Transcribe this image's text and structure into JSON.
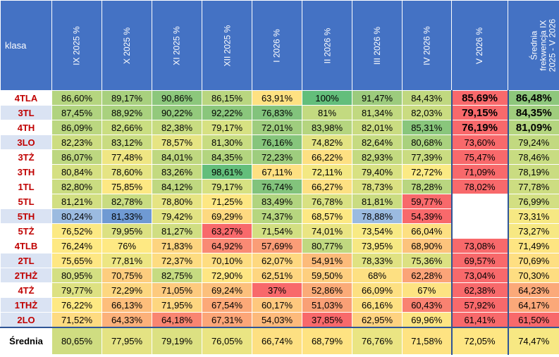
{
  "header": {
    "klasa": "klasa",
    "months": [
      "IX 2025 %",
      "X 2025 %",
      "XI 2025 %",
      "XII 2025 %",
      "I 2026 %",
      "II 2026 %",
      "III 2026 %",
      "IV 2026 %",
      "V 2026 %"
    ],
    "avg_line1": "Średnia frekwencja IX",
    "avg_line2": "2025 - V 2026"
  },
  "rows": [
    {
      "klasa": "4TLA",
      "values": [
        "86,60%",
        "89,17%",
        "90,86%",
        "86,15%",
        "63,91%",
        "100%",
        "91,47%",
        "84,43%",
        "85,69%"
      ],
      "avg": "86,48%",
      "colors": [
        "#b5d57f",
        "#a8d07e",
        "#8cc77c",
        "#b9d680",
        "#fee182",
        "#63be7b",
        "#9ccb7d",
        "#c0d880",
        "#f8696b"
      ],
      "avg_color": "#8ec77c",
      "v_big": true,
      "alt": false
    },
    {
      "klasa": "3TL",
      "values": [
        "87,45%",
        "88,92%",
        "90,22%",
        "92,22%",
        "76,83%",
        "81%",
        "81,34%",
        "82,03%",
        "79,15%"
      ],
      "avg": "84,35%",
      "colors": [
        "#b0d37f",
        "#a9d17e",
        "#93c97c",
        "#8ac67c",
        "#82c37c",
        "#c3da80",
        "#c1d980",
        "#cadc81",
        "#f8696b"
      ],
      "avg_color": "#a0cd7d",
      "v_big": true,
      "alt": true
    },
    {
      "klasa": "4TH",
      "values": [
        "86,09%",
        "82,66%",
        "82,38%",
        "79,17%",
        "72,01%",
        "83,98%",
        "82,01%",
        "85,31%",
        "76,19%"
      ],
      "avg": "81,09%",
      "colors": [
        "#bbd780",
        "#cade81",
        "#c8dc81",
        "#d7e182",
        "#9fcd7e",
        "#b5d57f",
        "#cadc81",
        "#89c67c",
        "#f8696b"
      ],
      "avg_color": "#b4d57f",
      "v_big": true,
      "alt": false
    },
    {
      "klasa": "3LO",
      "values": [
        "82,23%",
        "83,12%",
        "78,57%",
        "81,30%",
        "76,16%",
        "74,82%",
        "82,64%",
        "80,68%",
        "73,60%"
      ],
      "avg": "79,24%",
      "colors": [
        "#cddd81",
        "#c9dc81",
        "#e6e483",
        "#c8dc81",
        "#86c57c",
        "#e3e383",
        "#c6db81",
        "#a9d17e",
        "#f8696b"
      ],
      "avg_color": "#c2d980",
      "v_big": false,
      "alt": true
    },
    {
      "klasa": "3TŻ",
      "values": [
        "86,07%",
        "77,48%",
        "84,01%",
        "84,35%",
        "72,23%",
        "66,22%",
        "82,93%",
        "77,39%",
        "75,47%"
      ],
      "avg": "78,46%",
      "colors": [
        "#bdd780",
        "#efe683",
        "#bfd880",
        "#b3d57f",
        "#9ecd7e",
        "#fde082",
        "#c3da80",
        "#cadc81",
        "#f8696b"
      ],
      "avg_color": "#c8dc81",
      "v_big": false,
      "alt": false
    },
    {
      "klasa": "3TH",
      "values": [
        "80,84%",
        "78,60%",
        "83,26%",
        "98,61%",
        "67,11%",
        "72,11%",
        "79,40%",
        "72,72%",
        "71,09%"
      ],
      "avg": "78,19%",
      "colors": [
        "#d5e082",
        "#e5e483",
        "#c3da80",
        "#63be7b",
        "#fee082",
        "#f3e883",
        "#d8e182",
        "#fbea84",
        "#f8696b"
      ],
      "avg_color": "#cadc81",
      "v_big": false,
      "alt": false
    },
    {
      "klasa": "1TL",
      "values": [
        "82,80%",
        "75,85%",
        "84,12%",
        "79,17%",
        "76,74%",
        "66,27%",
        "78,73%",
        "78,28%",
        "78,02%"
      ],
      "avg": "77,78%",
      "colors": [
        "#cadc81",
        "#fde883",
        "#bfd880",
        "#d7e182",
        "#82c37c",
        "#fde082",
        "#dbe182",
        "#b9d680",
        "#f8696b"
      ],
      "avg_color": "#cddd81",
      "v_big": false,
      "alt": false
    },
    {
      "klasa": "5TL",
      "values": [
        "81,21%",
        "82,78%",
        "78,80%",
        "71,25%",
        "83,49%",
        "76,78%",
        "81,81%",
        "59,77%",
        ""
      ],
      "avg": "76,99%",
      "colors": [
        "#d2df82",
        "#c9dc81",
        "#e6e483",
        "#fde783",
        "#b1d47f",
        "#d9e182",
        "#cadc81",
        "#f8696b",
        "#ffffff"
      ],
      "avg_color": "#d3df82",
      "v_big": false,
      "alt": false
    },
    {
      "klasa": "5TH",
      "values": [
        "80,24%",
        "81,33%",
        "79,42%",
        "69,29%",
        "74,37%",
        "68,57%",
        "78,88%",
        "54,39%",
        ""
      ],
      "avg": "73,31%",
      "colors": [
        "#9bbbe0",
        "#6f9ad3",
        "#e2e383",
        "#fdd980",
        "#b6d67f",
        "#fde883",
        "#9bbbe0",
        "#f8696b",
        "#ffffff"
      ],
      "avg_color": "#f6e883",
      "v_big": false,
      "alt": true
    },
    {
      "klasa": "5TŻ",
      "values": [
        "76,52%",
        "79,95%",
        "81,27%",
        "63,27%",
        "71,54%",
        "74,01%",
        "73,54%",
        "66,04%",
        ""
      ],
      "avg": "73,27%",
      "colors": [
        "#fce983",
        "#dce182",
        "#d0de82",
        "#f8696b",
        "#d2df82",
        "#eae583",
        "#f8ea84",
        "#fde082",
        "#ffffff"
      ],
      "avg_color": "#f7e883",
      "v_big": false,
      "alt": false
    },
    {
      "klasa": "4TLB",
      "values": [
        "76,24%",
        "76%",
        "71,83%",
        "64,92%",
        "57,69%",
        "80,77%",
        "73,95%",
        "68,90%",
        "73,08%"
      ],
      "avg": "71,49%",
      "colors": [
        "#fee983",
        "#fee983",
        "#fdd47f",
        "#f98a74",
        "#fa9d77",
        "#c0d880",
        "#f6e883",
        "#fcc37c",
        "#f8696b"
      ],
      "avg_color": "#fee582",
      "v_big": false,
      "alt": false
    },
    {
      "klasa": "2TL",
      "values": [
        "75,65%",
        "77,81%",
        "72,37%",
        "70,10%",
        "62,07%",
        "54,91%",
        "78,33%",
        "75,36%",
        "69,57%"
      ],
      "avg": "70,69%",
      "colors": [
        "#fee783",
        "#ede683",
        "#fddc81",
        "#fedd81",
        "#fed880",
        "#fcbb7a",
        "#e0e282",
        "#dce182",
        "#f8696b"
      ],
      "avg_color": "#fedf82",
      "v_big": false,
      "alt": true
    },
    {
      "klasa": "2THŻ",
      "values": [
        "80,95%",
        "70,75%",
        "82,75%",
        "72,90%",
        "62,51%",
        "59,50%",
        "68%",
        "62,28%",
        "73,04%"
      ],
      "avg": "70,30%",
      "colors": [
        "#d4df82",
        "#fdcd7e",
        "#c6db81",
        "#fee683",
        "#fed680",
        "#fecf7f",
        "#fde082",
        "#fba478",
        "#f8696b"
      ],
      "avg_color": "#fedd81",
      "v_big": false,
      "alt": true
    },
    {
      "klasa": "4TŻ",
      "values": [
        "79,77%",
        "72,29%",
        "71,05%",
        "69,24%",
        "37%",
        "52,86%",
        "66,09%",
        "67%",
        "62,38%"
      ],
      "avg": "64,23%",
      "colors": [
        "#dde182",
        "#fdd780",
        "#fdca7e",
        "#fcc07c",
        "#f8696b",
        "#fbab78",
        "#fde082",
        "#fde382",
        "#f8696b"
      ],
      "avg_color": "#fba979",
      "v_big": false,
      "alt": false
    },
    {
      "klasa": "1THŻ",
      "values": [
        "76,22%",
        "66,13%",
        "71,95%",
        "67,54%",
        "60,17%",
        "51,03%",
        "66,16%",
        "60,43%",
        "57,92%"
      ],
      "avg": "64,17%",
      "colors": [
        "#fee983",
        "#fdbe7b",
        "#fdd680",
        "#fca978",
        "#fec87e",
        "#f9a076",
        "#fde082",
        "#f98271",
        "#f8696b"
      ],
      "avg_color": "#fba879",
      "v_big": false,
      "alt": true
    },
    {
      "klasa": "2LO",
      "values": [
        "71,52%",
        "64,33%",
        "64,18%",
        "67,31%",
        "54,03%",
        "37,85%",
        "62,95%",
        "69,96%",
        "61,41%"
      ],
      "avg": "61,50%",
      "colors": [
        "#fedb81",
        "#fcb17a",
        "#f98571",
        "#fca678",
        "#fdba7b",
        "#f8696b",
        "#fed280",
        "#fde583",
        "#f8696b"
      ],
      "avg_color": "#f8696b",
      "v_big": false,
      "alt": true
    }
  ],
  "average": {
    "label": "Średnia",
    "values": [
      "80,65%",
      "77,95%",
      "79,19%",
      "76,05%",
      "66,74%",
      "68,79%",
      "76,76%",
      "71,58%",
      "72,05%"
    ],
    "avg": "74,47%",
    "colors": [
      "#cfdd81",
      "#e4e383",
      "#dce182",
      "#eae583",
      "#fde082",
      "#fee382",
      "#eae583",
      "#fee382",
      "#fee683"
    ],
    "avg_color": "#f7e883"
  }
}
